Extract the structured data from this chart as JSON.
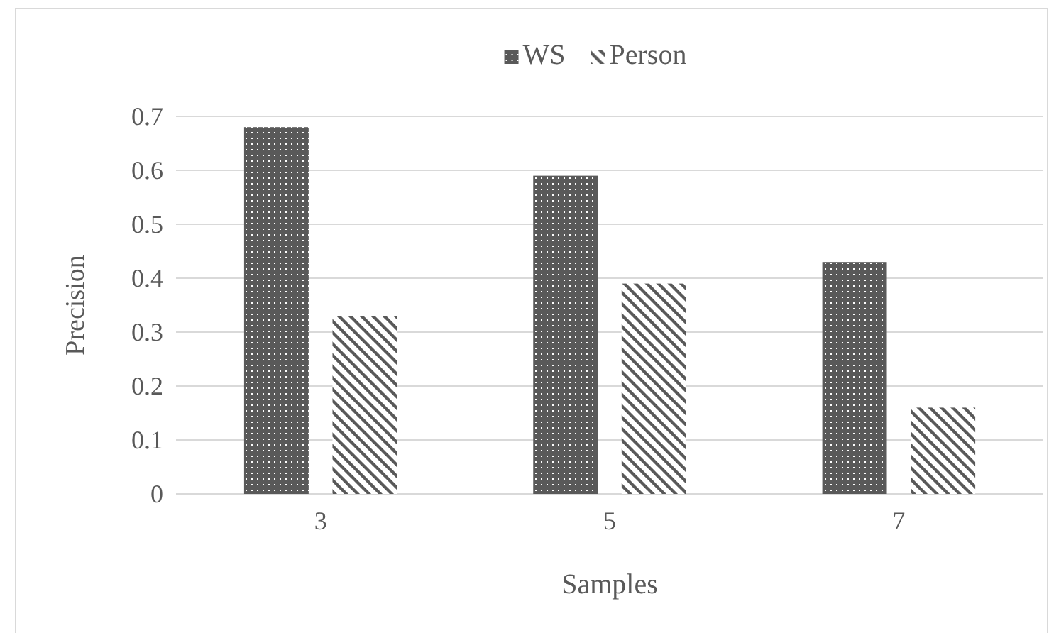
{
  "chart_data": {
    "type": "bar",
    "xlabel": "Samples",
    "ylabel": "Precision",
    "categories": [
      "3",
      "5",
      "7"
    ],
    "series": [
      {
        "name": "WS",
        "color": "#595959",
        "values": [
          0.68,
          0.59,
          0.43
        ]
      },
      {
        "name": "Person",
        "color": "#595959",
        "values": [
          0.33,
          0.39,
          0.16
        ]
      }
    ],
    "ylim": [
      0,
      0.7
    ],
    "yticks": [
      0,
      0.1,
      0.2,
      0.3,
      0.4,
      0.5,
      0.6,
      0.7
    ],
    "grid": "y",
    "legend": "top"
  }
}
